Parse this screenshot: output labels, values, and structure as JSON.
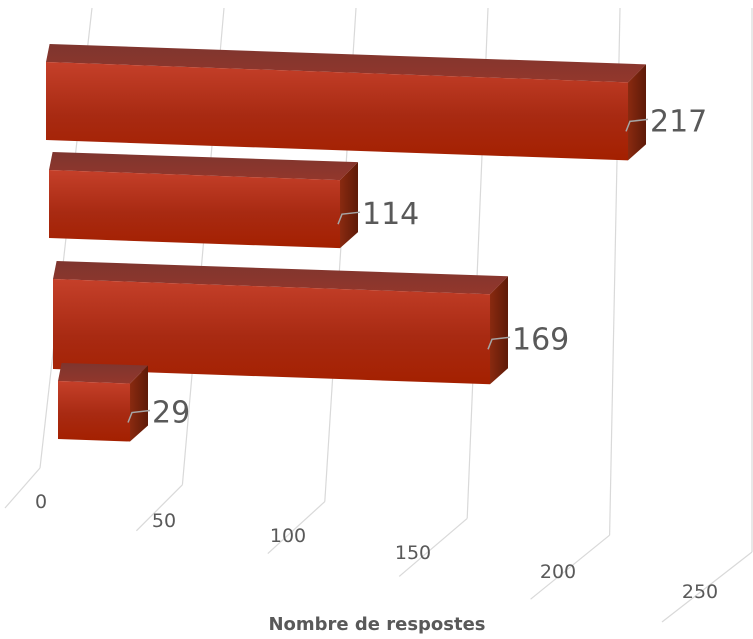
{
  "chart_data": {
    "type": "bar",
    "orientation": "horizontal",
    "three_d": true,
    "series": [
      {
        "values": [
          217,
          114,
          169,
          29
        ],
        "color": "#b52a12"
      }
    ],
    "data_labels": [
      "217",
      "114",
      "169",
      "29"
    ],
    "xlabel": "Nombre de respostes",
    "xlim": [
      0,
      250
    ],
    "xticks": [
      0,
      50,
      100,
      150,
      200,
      250
    ],
    "xtick_labels": [
      "0",
      "50",
      "100",
      "150",
      "200",
      "250"
    ],
    "grid": true,
    "legend": "none"
  }
}
